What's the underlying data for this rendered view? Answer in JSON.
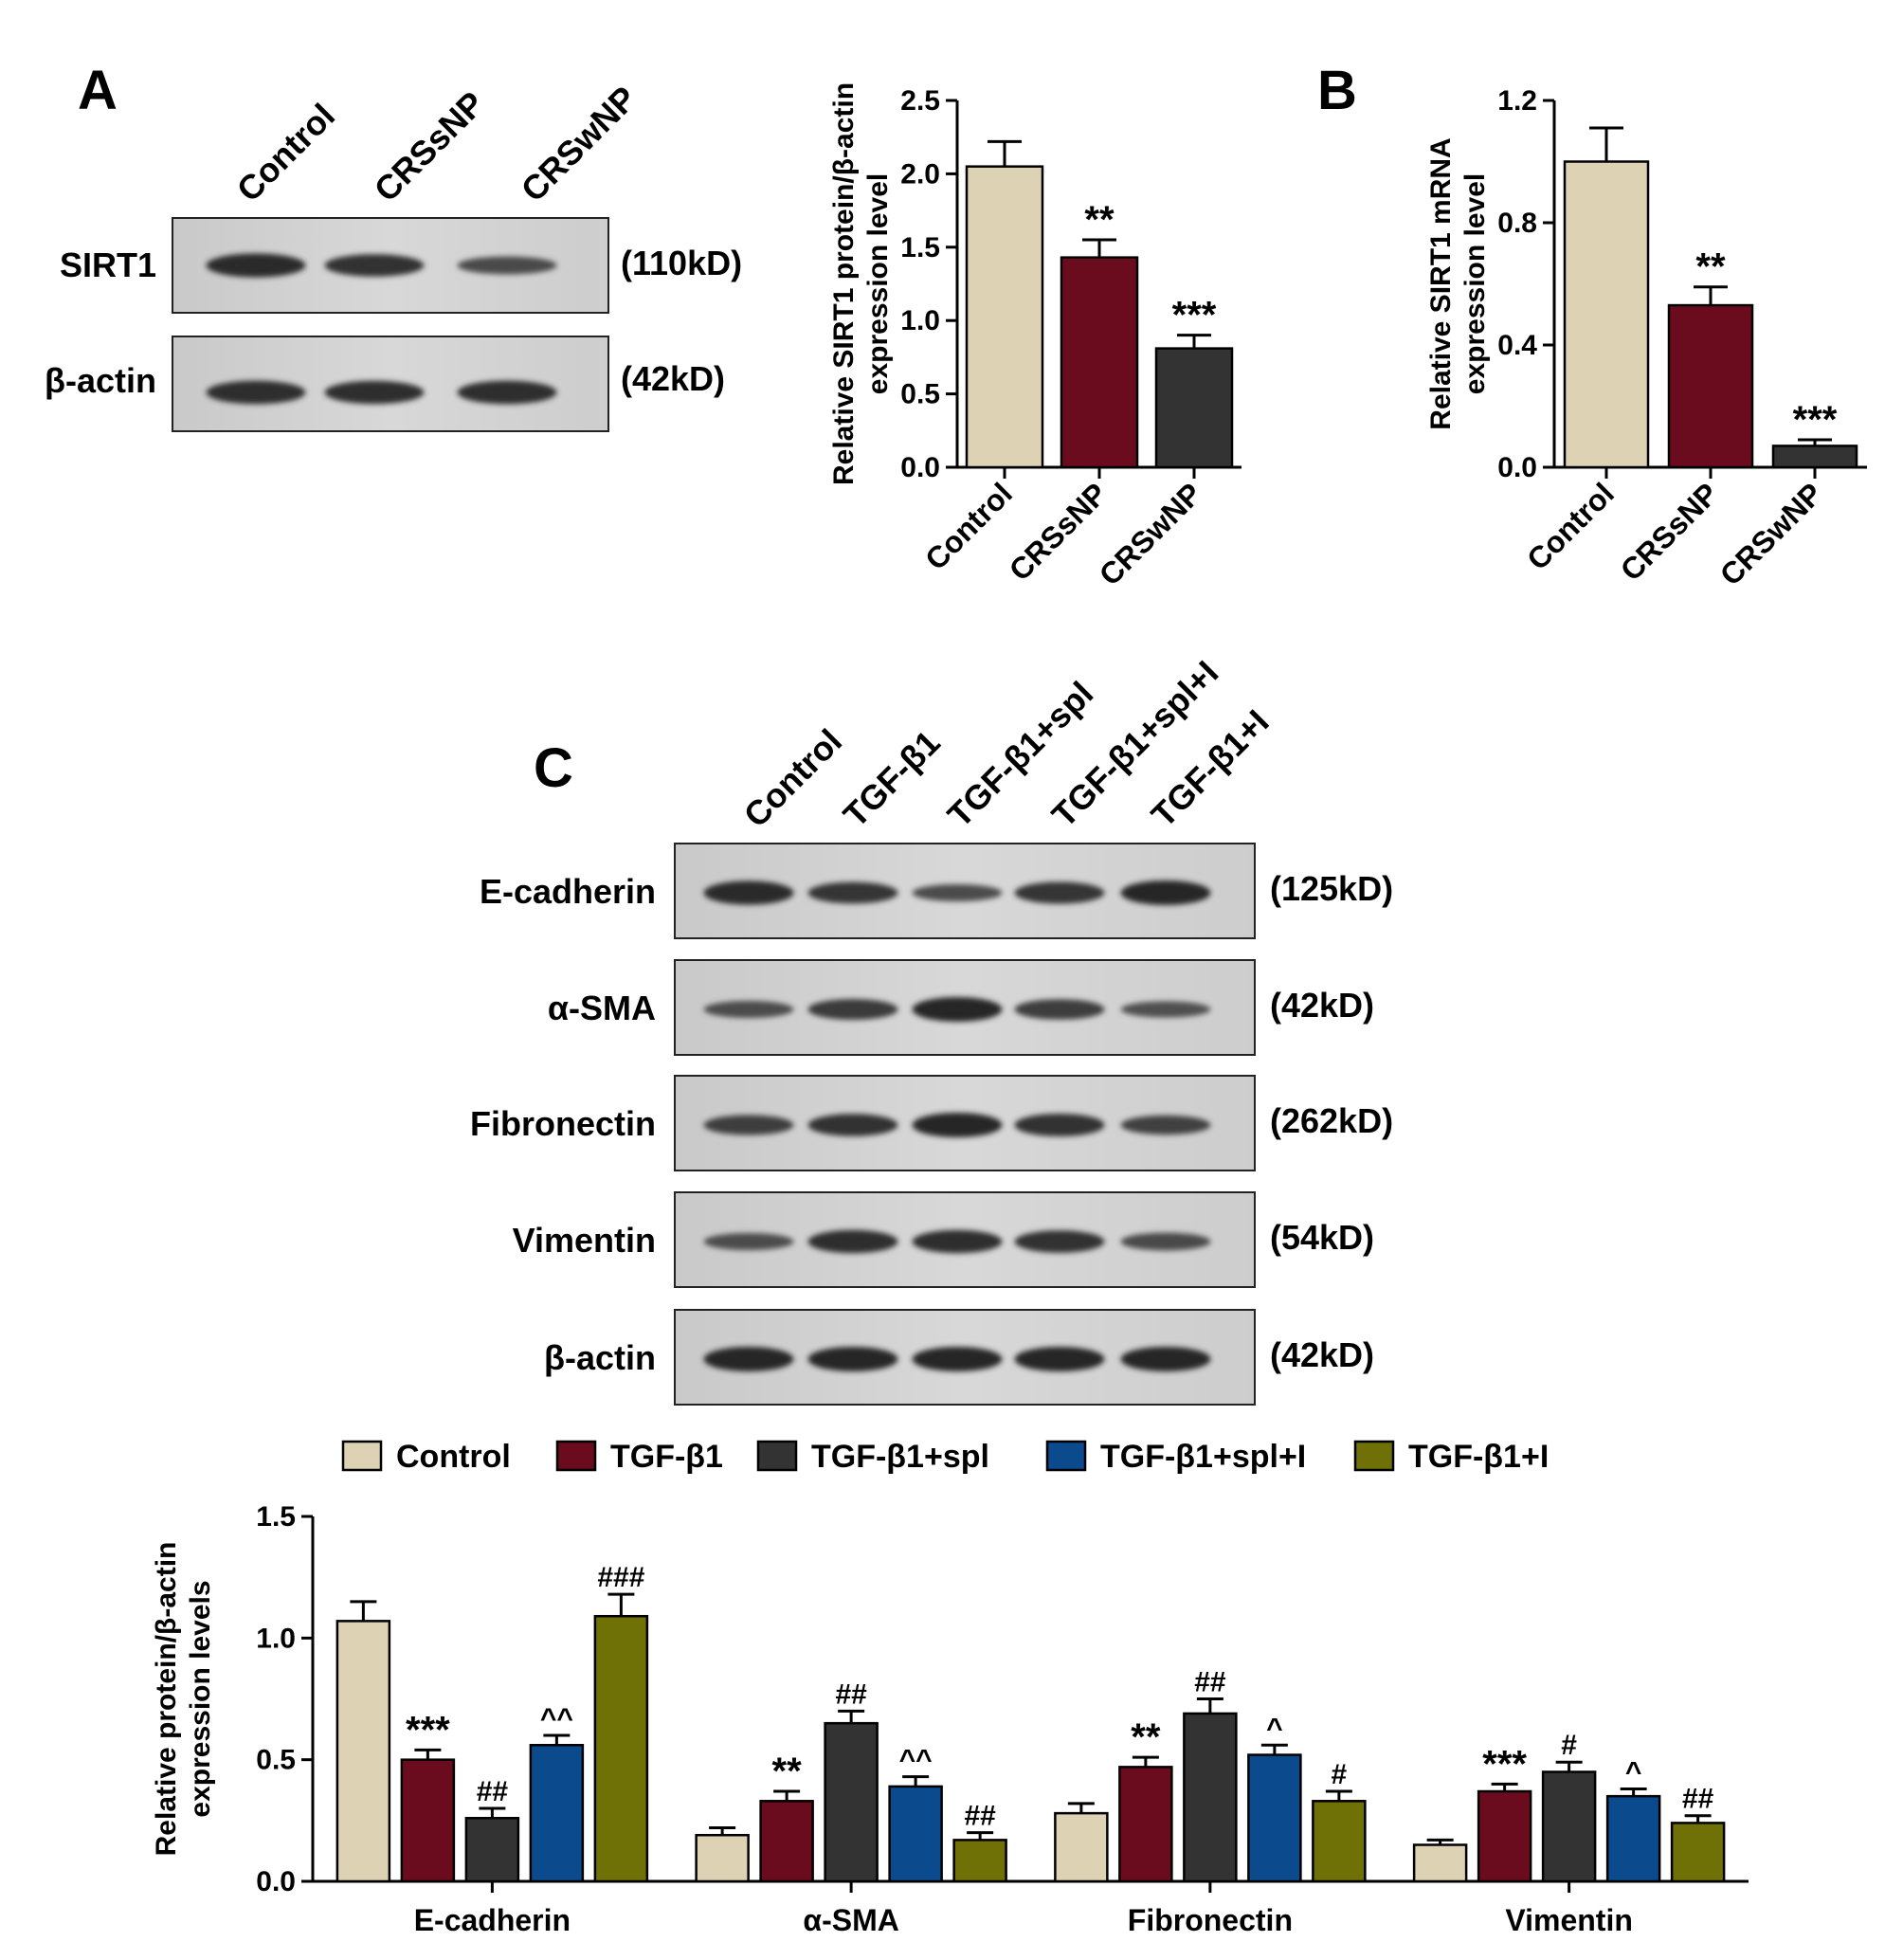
{
  "panels": {
    "A": {
      "letter": "A",
      "blot": {
        "lanes": [
          "Control",
          "CRSsNP",
          "CRSwNP"
        ],
        "rows": [
          {
            "protein": "SIRT1",
            "kd": "(110kD)",
            "intensities": [
              0.95,
              0.85,
              0.55
            ]
          },
          {
            "protein": "β-actin",
            "kd": "(42kD)",
            "intensities": [
              0.92,
              0.9,
              0.92
            ]
          }
        ]
      }
    },
    "B": {
      "letter": "B"
    },
    "C": {
      "letter": "C",
      "blot": {
        "lanes": [
          "Control",
          "TGF-β1",
          "TGF-β1+spl",
          "TGF-β1+spl+I",
          "TGF-β1+I"
        ],
        "rows": [
          {
            "protein": "E-cadherin",
            "kd": "(125kD)",
            "intensities": [
              0.95,
              0.8,
              0.5,
              0.82,
              1.0
            ]
          },
          {
            "protein": "α-SMA",
            "kd": "(42kD)",
            "intensities": [
              0.5,
              0.75,
              1.0,
              0.72,
              0.45
            ]
          },
          {
            "protein": "Fibronectin",
            "kd": "(262kD)",
            "intensities": [
              0.7,
              0.85,
              1.0,
              0.88,
              0.65
            ]
          },
          {
            "protein": "Vimentin",
            "kd": "(54kD)",
            "intensities": [
              0.5,
              0.9,
              0.9,
              0.85,
              0.55
            ]
          },
          {
            "protein": "β-actin",
            "kd": "(42kD)",
            "intensities": [
              1.0,
              1.0,
              1.0,
              1.0,
              1.0
            ]
          }
        ]
      }
    }
  },
  "colors": {
    "control": "#ddd3b4",
    "tgf": "#6b0c1e",
    "spl": "#333333",
    "spli": "#0b4a8c",
    "i": "#6f7005"
  },
  "chart_data": [
    {
      "id": "A-bar",
      "type": "bar",
      "categories": [
        "Control",
        "CRSsNP",
        "CRSwNP"
      ],
      "values": [
        2.05,
        1.43,
        0.81
      ],
      "errors": [
        0.17,
        0.12,
        0.09
      ],
      "significance": [
        "",
        "**",
        "***"
      ],
      "colors": [
        "#ddd3b4",
        "#6b0c1e",
        "#333333"
      ],
      "ylabel": [
        "Relative SIRT1 protein/β-actin",
        "expression level"
      ],
      "ylim": [
        0,
        2.5
      ],
      "yticks": [
        "0.0",
        "0.5",
        "1.0",
        "1.5",
        "2.0",
        "2.5"
      ],
      "xlabel": ""
    },
    {
      "id": "B-bar",
      "type": "bar",
      "categories": [
        "Control",
        "CRSsNP",
        "CRSwNP"
      ],
      "values": [
        1.0,
        0.53,
        0.07
      ],
      "errors": [
        0.11,
        0.06,
        0.02
      ],
      "significance": [
        "",
        "**",
        "***"
      ],
      "colors": [
        "#ddd3b4",
        "#6b0c1e",
        "#333333"
      ],
      "ylabel": [
        "Relative SIRT1 mRNA",
        "expression level"
      ],
      "ylim": [
        0,
        1.2
      ],
      "yticks": [
        "0.0",
        "0.4",
        "0.8",
        "1.2"
      ],
      "xlabel": ""
    },
    {
      "id": "C-bar",
      "type": "bar",
      "categories": [
        "E-cadherin",
        "α-SMA",
        "Fibronectin",
        "Vimentin"
      ],
      "legend_position": "top",
      "series": [
        {
          "name": "Control",
          "color": "#ddd3b4",
          "values": [
            1.07,
            0.19,
            0.28,
            0.15
          ],
          "errors": [
            0.08,
            0.03,
            0.04,
            0.02
          ],
          "significance": [
            "",
            "",
            "",
            ""
          ]
        },
        {
          "name": "TGF-β1",
          "color": "#6b0c1e",
          "values": [
            0.5,
            0.33,
            0.47,
            0.37
          ],
          "errors": [
            0.04,
            0.04,
            0.04,
            0.03
          ],
          "significance": [
            "***",
            "**",
            "**",
            "***"
          ]
        },
        {
          "name": "TGF-β1+spl",
          "color": "#333333",
          "values": [
            0.26,
            0.65,
            0.69,
            0.45
          ],
          "errors": [
            0.04,
            0.05,
            0.06,
            0.04
          ],
          "significance": [
            "##",
            "##",
            "##",
            "#"
          ]
        },
        {
          "name": "TGF-β1+spl+I",
          "color": "#0b4a8c",
          "values": [
            0.56,
            0.39,
            0.52,
            0.35
          ],
          "errors": [
            0.04,
            0.04,
            0.04,
            0.03
          ],
          "significance": [
            "^^",
            "^^",
            "^",
            "^"
          ]
        },
        {
          "name": "TGF-β1+I",
          "color": "#6f7005",
          "values": [
            1.09,
            0.17,
            0.33,
            0.24
          ],
          "errors": [
            0.09,
            0.03,
            0.04,
            0.03
          ],
          "significance": [
            "###",
            "##",
            "#",
            "##"
          ]
        }
      ],
      "ylabel": [
        "Relative protein/β-actin",
        "expression levels"
      ],
      "ylim": [
        0,
        1.5
      ],
      "yticks": [
        "0.0",
        "0.5",
        "1.0",
        "1.5"
      ],
      "xlabel": ""
    }
  ]
}
